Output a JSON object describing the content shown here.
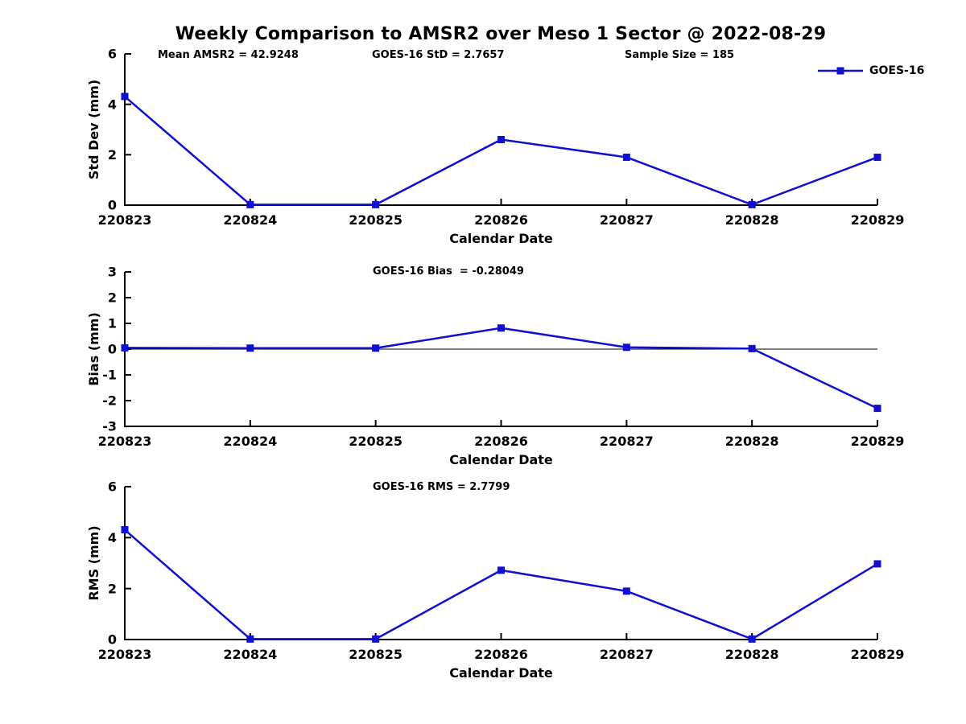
{
  "title": "Weekly Comparison to AMSR2 over Meso 1 Sector @ 2022-08-29",
  "colors": {
    "line": "#0f0fd0",
    "axis": "#000000",
    "zero_line": "#000000",
    "background": "#ffffff",
    "text": "#000000"
  },
  "legend": {
    "label": "GOES-16",
    "marker": "square",
    "position": "top-right"
  },
  "chart_data": [
    {
      "type": "line",
      "panel": "std-dev",
      "stats": [
        "Mean AMSR2 = 42.9248",
        "GOES-16 StD = 2.7657",
        "Sample Size = 185"
      ],
      "categories": [
        "220823",
        "220824",
        "220825",
        "220826",
        "220827",
        "220828",
        "220829"
      ],
      "series": [
        {
          "name": "GOES-16",
          "values": [
            4.31,
            0.02,
            0.02,
            2.6,
            1.9,
            0.02,
            1.9
          ]
        }
      ],
      "xlabel": "Calendar Date",
      "ylabel": "Std Dev (mm)",
      "ylim": [
        0,
        6
      ],
      "yticks": [
        0,
        2,
        4,
        6
      ],
      "zero_line": false,
      "grid": false
    },
    {
      "type": "line",
      "panel": "bias",
      "stats": [
        "GOES-16 Bias  = -0.28049"
      ],
      "categories": [
        "220823",
        "220824",
        "220825",
        "220826",
        "220827",
        "220828",
        "220829"
      ],
      "series": [
        {
          "name": "GOES-16",
          "values": [
            0.05,
            0.04,
            0.04,
            0.82,
            0.07,
            0.02,
            -2.3
          ]
        }
      ],
      "xlabel": "Calendar Date",
      "ylabel": "Bias (mm)",
      "ylim": [
        -3,
        3
      ],
      "yticks": [
        -3,
        -2,
        -1,
        0,
        1,
        2,
        3
      ],
      "zero_line": true,
      "grid": false
    },
    {
      "type": "line",
      "panel": "rms",
      "stats": [
        "GOES-16 RMS = 2.7799"
      ],
      "categories": [
        "220823",
        "220824",
        "220825",
        "220826",
        "220827",
        "220828",
        "220829"
      ],
      "series": [
        {
          "name": "GOES-16",
          "values": [
            4.31,
            0.02,
            0.02,
            2.72,
            1.9,
            0.02,
            2.97
          ]
        }
      ],
      "xlabel": "Calendar Date",
      "ylabel": "RMS (mm)",
      "ylim": [
        0,
        6
      ],
      "yticks": [
        0,
        2,
        4,
        6
      ],
      "zero_line": false,
      "grid": false
    }
  ]
}
